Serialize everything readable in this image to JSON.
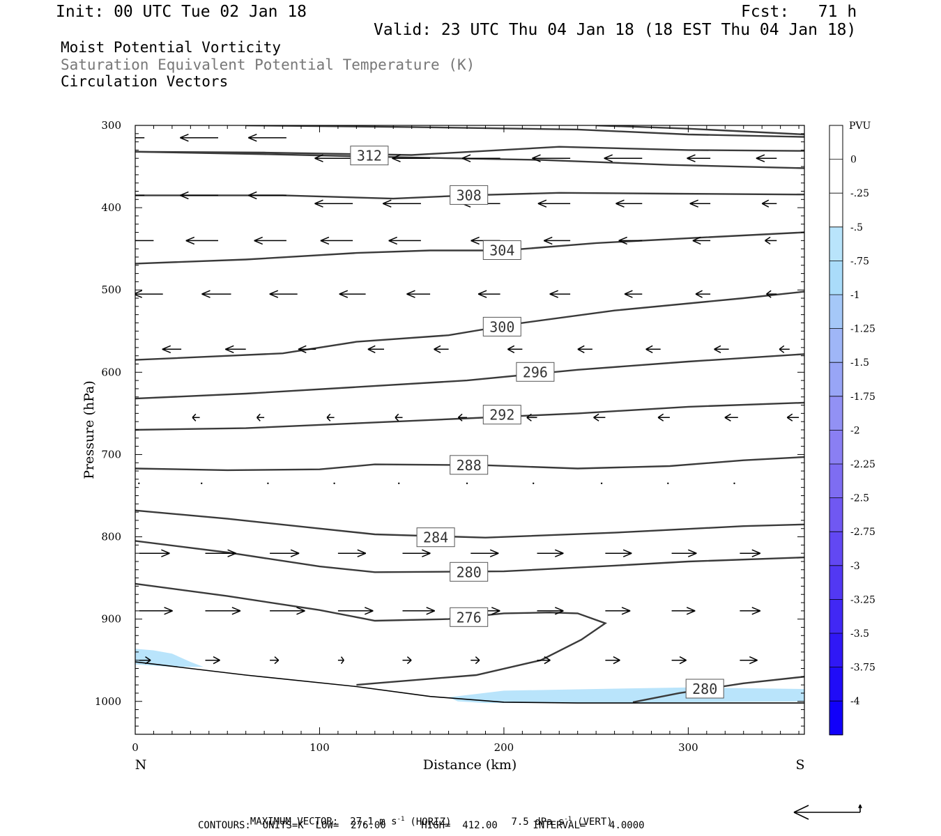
{
  "header": {
    "init": "Init: 00 UTC Tue 02 Jan 18",
    "fcst": "Fcst:   71 h",
    "valid": "Valid: 23 UTC Thu 04 Jan 18 (18 EST Thu 04 Jan 18)"
  },
  "fields": {
    "line1": "Moist Potential Vorticity",
    "line2": "Saturation Equivalent Potential Temperature (K)",
    "line3": "Circulation Vectors"
  },
  "footer": {
    "max_vector": "MAXIMUM VECTOR:  27.1 m s",
    "max_vector_unit_sup": "-1",
    "horiz": "(HORIZ)",
    "vert_value": "7.5 dPa s",
    "vert_unit_sup": "-1",
    "vert": "(VERT)",
    "contours": "CONTOURS:  UNITS=K  LOW=  276.00      HIGH=  412.00      INTERVAL=    4.0000"
  },
  "chart_data": {
    "type": "cross-section",
    "xlabel": "Distance (km)",
    "ylabel": "Pressure (hPa)",
    "x_range": [
      0,
      363
    ],
    "y_range_hPa": [
      300,
      1040
    ],
    "x_ticks": [
      0,
      100,
      200,
      300
    ],
    "y_ticks": [
      300,
      400,
      500,
      600,
      700,
      800,
      900,
      1000
    ],
    "x_end_labels": {
      "left": "N",
      "right": "S"
    },
    "colorbar": {
      "title": "PVU",
      "labels": [
        "0",
        "-.25",
        "-.5",
        "-.75",
        "-1",
        "-1.25",
        "-1.5",
        "-1.75",
        "-2",
        "-2.25",
        "-2.5",
        "-2.75",
        "-3",
        "-3.25",
        "-3.5",
        "-3.75",
        "-4"
      ],
      "colors": [
        "#ffffff",
        "#ffffff",
        "#b9e4fb",
        "#aadcfa",
        "#a5c8f8",
        "#9fb6f7",
        "#98a5f6",
        "#9291f4",
        "#8a7ff3",
        "#7e6df2",
        "#7058f2",
        "#6248f3",
        "#5238f3",
        "#4128f4",
        "#3018f5",
        "#200cf7",
        "#1100fa"
      ]
    },
    "contours": [
      {
        "value": 276,
        "labeled": true,
        "points": [
          [
            0,
            857
          ],
          [
            50,
            872
          ],
          [
            100,
            889
          ],
          [
            130,
            902
          ],
          [
            170,
            900
          ],
          [
            200,
            893
          ],
          [
            225,
            892
          ],
          [
            240,
            893
          ],
          [
            255,
            905
          ],
          [
            242,
            925
          ],
          [
            220,
            950
          ],
          [
            185,
            968
          ],
          [
            130,
            978
          ],
          [
            120,
            980
          ]
        ]
      },
      {
        "value": 280,
        "labeled": true,
        "points": [
          [
            0,
            805
          ],
          [
            50,
            819
          ],
          [
            100,
            836
          ],
          [
            130,
            843
          ],
          [
            200,
            842
          ],
          [
            260,
            835
          ],
          [
            300,
            830
          ],
          [
            363,
            825
          ]
        ]
      },
      {
        "value": 280,
        "labeled": true,
        "points": [
          [
            270,
            1001
          ],
          [
            295,
            990
          ],
          [
            330,
            978
          ],
          [
            363,
            970
          ]
        ]
      },
      {
        "value": 284,
        "labeled": true,
        "points": [
          [
            0,
            768
          ],
          [
            50,
            778
          ],
          [
            100,
            790
          ],
          [
            130,
            797
          ],
          [
            190,
            801
          ],
          [
            260,
            795
          ],
          [
            330,
            787
          ],
          [
            363,
            785
          ]
        ]
      },
      {
        "value": 288,
        "labeled": true,
        "points": [
          [
            0,
            717
          ],
          [
            50,
            719
          ],
          [
            100,
            718
          ],
          [
            130,
            712
          ],
          [
            190,
            713
          ],
          [
            240,
            717
          ],
          [
            290,
            714
          ],
          [
            330,
            707
          ],
          [
            363,
            703
          ]
        ]
      },
      {
        "value": 292,
        "labeled": true,
        "points": [
          [
            0,
            670
          ],
          [
            60,
            668
          ],
          [
            120,
            662
          ],
          [
            180,
            656
          ],
          [
            240,
            650
          ],
          [
            300,
            642
          ],
          [
            363,
            637
          ]
        ]
      },
      {
        "value": 296,
        "labeled": true,
        "points": [
          [
            0,
            632
          ],
          [
            60,
            626
          ],
          [
            120,
            618
          ],
          [
            180,
            610
          ],
          [
            240,
            597
          ],
          [
            300,
            587
          ],
          [
            363,
            578
          ]
        ]
      },
      {
        "value": 300,
        "labeled": true,
        "points": [
          [
            0,
            585
          ],
          [
            80,
            577
          ],
          [
            120,
            563
          ],
          [
            170,
            555
          ],
          [
            210,
            540
          ],
          [
            260,
            525
          ],
          [
            330,
            510
          ],
          [
            363,
            502
          ]
        ]
      },
      {
        "value": 304,
        "labeled": true,
        "points": [
          [
            0,
            468
          ],
          [
            60,
            463
          ],
          [
            120,
            455
          ],
          [
            160,
            452
          ],
          [
            200,
            452
          ],
          [
            250,
            443
          ],
          [
            310,
            436
          ],
          [
            363,
            430
          ]
        ]
      },
      {
        "value": 308,
        "labeled": true,
        "points": [
          [
            0,
            385
          ],
          [
            80,
            385
          ],
          [
            140,
            389
          ],
          [
            180,
            385
          ],
          [
            230,
            382
          ],
          [
            290,
            383
          ],
          [
            363,
            384
          ]
        ]
      },
      {
        "value": 312,
        "labeled": true,
        "points": [
          [
            0,
            332
          ],
          [
            70,
            335
          ],
          [
            150,
            339
          ],
          [
            220,
            342
          ],
          [
            290,
            348
          ],
          [
            363,
            352
          ]
        ]
      },
      {
        "value": 316,
        "labeled": false,
        "points": [
          [
            0,
            332
          ],
          [
            70,
            333
          ],
          [
            150,
            336
          ],
          [
            230,
            326
          ],
          [
            300,
            330
          ],
          [
            363,
            331
          ]
        ]
      },
      {
        "value": 320,
        "labeled": false,
        "points": [
          [
            60,
            300
          ],
          [
            150,
            302
          ],
          [
            240,
            305
          ],
          [
            300,
            311
          ],
          [
            363,
            314
          ]
        ]
      },
      {
        "value": 324,
        "labeled": false,
        "points": [
          [
            250,
            300
          ],
          [
            300,
            304
          ],
          [
            363,
            311
          ]
        ]
      }
    ],
    "pv_shading": [
      {
        "level": "-0.25",
        "points": [
          [
            0,
            936
          ],
          [
            10,
            938
          ],
          [
            20,
            942
          ],
          [
            30,
            952
          ],
          [
            37,
            958
          ],
          [
            20,
            958
          ],
          [
            0,
            955
          ]
        ]
      },
      {
        "level": "-0.5",
        "points": [
          [
            0,
            945
          ],
          [
            10,
            948
          ],
          [
            20,
            955
          ],
          [
            0,
            954
          ]
        ]
      },
      {
        "level": "-0.25",
        "points": [
          [
            170,
            995
          ],
          [
            200,
            987
          ],
          [
            250,
            985
          ],
          [
            300,
            983
          ],
          [
            363,
            985
          ],
          [
            363,
            1000
          ],
          [
            300,
            1001
          ],
          [
            250,
            1002
          ],
          [
            190,
            1002
          ],
          [
            175,
            1000
          ]
        ]
      },
      {
        "level": "-0.5",
        "points": [
          [
            185,
            998
          ],
          [
            220,
            995
          ],
          [
            260,
            996
          ],
          [
            270,
            1001
          ],
          [
            210,
            1002
          ],
          [
            185,
            1001
          ]
        ]
      }
    ],
    "ground_line": [
      [
        0,
        952
      ],
      [
        60,
        968
      ],
      [
        120,
        982
      ],
      [
        160,
        994
      ],
      [
        200,
        1001
      ],
      [
        240,
        1002
      ],
      [
        300,
        1002
      ],
      [
        363,
        1002
      ]
    ],
    "vectors": [
      {
        "row": 315,
        "items": [
          [
            5,
            -26
          ],
          [
            45,
            -26
          ],
          [
            82,
            -26
          ]
        ]
      },
      {
        "row": 340,
        "items": [
          [
            118,
            -26
          ],
          [
            160,
            -26
          ],
          [
            198,
            -26
          ],
          [
            236,
            -26
          ],
          [
            275,
            -26
          ],
          [
            312,
            -16
          ],
          [
            348,
            -14
          ]
        ]
      },
      {
        "row": 385,
        "items": [
          [
            5,
            -26
          ],
          [
            45,
            -26
          ],
          [
            82,
            -26
          ]
        ]
      },
      {
        "row": 395,
        "items": [
          [
            118,
            -26
          ],
          [
            155,
            -26
          ],
          [
            198,
            -26
          ],
          [
            236,
            -22
          ],
          [
            275,
            -18
          ],
          [
            312,
            -14
          ],
          [
            348,
            -10
          ]
        ]
      },
      {
        "row": 440,
        "items": [
          [
            10,
            -22
          ],
          [
            45,
            -22
          ],
          [
            82,
            -22
          ],
          [
            118,
            -22
          ],
          [
            155,
            -22
          ],
          [
            198,
            -20
          ],
          [
            236,
            -18
          ],
          [
            275,
            -16
          ],
          [
            312,
            -12
          ],
          [
            348,
            -8
          ]
        ]
      },
      {
        "row": 505,
        "items": [
          [
            15,
            -20
          ],
          [
            52,
            -20
          ],
          [
            88,
            -19
          ],
          [
            125,
            -18
          ],
          [
            160,
            -16
          ],
          [
            198,
            -15
          ],
          [
            236,
            -14
          ],
          [
            275,
            -12
          ],
          [
            312,
            -10
          ],
          [
            348,
            -7
          ]
        ]
      },
      {
        "row": 572,
        "items": [
          [
            25,
            -13
          ],
          [
            60,
            -14
          ],
          [
            98,
            -12
          ],
          [
            135,
            -11
          ],
          [
            170,
            -10
          ],
          [
            210,
            -10
          ],
          [
            248,
            -10
          ],
          [
            285,
            -10
          ],
          [
            322,
            -10
          ],
          [
            355,
            -7
          ]
        ]
      },
      {
        "row": 655,
        "items": [
          [
            35,
            -5
          ],
          [
            70,
            -5
          ],
          [
            108,
            -5
          ],
          [
            145,
            -5
          ],
          [
            180,
            -6
          ],
          [
            218,
            -7
          ],
          [
            255,
            -8
          ],
          [
            290,
            -8
          ],
          [
            327,
            -9
          ],
          [
            360,
            -8
          ]
        ]
      },
      {
        "row": 735,
        "items": [
          [
            2,
            -1
          ],
          [
            36,
            -1
          ],
          [
            72,
            -1
          ],
          [
            108,
            -1
          ],
          [
            143,
            0
          ],
          [
            180,
            0
          ],
          [
            216,
            0
          ],
          [
            253,
            0
          ],
          [
            289,
            0
          ],
          [
            325,
            0
          ]
        ]
      },
      {
        "row": 820,
        "items": [
          [
            2,
            21
          ],
          [
            38,
            21
          ],
          [
            73,
            20
          ],
          [
            110,
            19
          ],
          [
            145,
            19
          ],
          [
            182,
            19
          ],
          [
            218,
            18
          ],
          [
            255,
            18
          ],
          [
            291,
            17
          ],
          [
            328,
            14
          ]
        ]
      },
      {
        "row": 890,
        "items": [
          [
            2,
            23
          ],
          [
            38,
            24
          ],
          [
            73,
            24
          ],
          [
            110,
            24
          ],
          [
            145,
            22
          ],
          [
            182,
            20
          ],
          [
            218,
            18
          ],
          [
            255,
            17
          ],
          [
            291,
            16
          ],
          [
            328,
            14
          ]
        ]
      },
      {
        "row": 950,
        "items": [
          [
            2,
            8
          ],
          [
            38,
            10
          ],
          [
            73,
            6
          ],
          [
            110,
            4
          ],
          [
            145,
            6
          ],
          [
            182,
            6
          ],
          [
            218,
            9
          ],
          [
            255,
            10
          ],
          [
            291,
            10
          ],
          [
            328,
            12
          ]
        ]
      }
    ],
    "contour_labels": [
      {
        "text": "312",
        "x": 127,
        "p": 337
      },
      {
        "text": "308",
        "x": 181,
        "p": 385
      },
      {
        "text": "304",
        "x": 199,
        "p": 452
      },
      {
        "text": "300",
        "x": 199,
        "p": 545
      },
      {
        "text": "296",
        "x": 217,
        "p": 600
      },
      {
        "text": "292",
        "x": 199,
        "p": 652
      },
      {
        "text": "288",
        "x": 181,
        "p": 713
      },
      {
        "text": "284",
        "x": 163,
        "p": 801
      },
      {
        "text": "280",
        "x": 181,
        "p": 843
      },
      {
        "text": "276",
        "x": 181,
        "p": 898
      },
      {
        "text": "280",
        "x": 309,
        "p": 985
      }
    ]
  }
}
